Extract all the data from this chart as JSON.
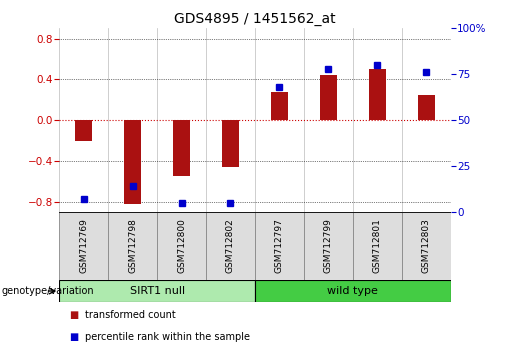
{
  "title": "GDS4895 / 1451562_at",
  "samples": [
    "GSM712769",
    "GSM712798",
    "GSM712800",
    "GSM712802",
    "GSM712797",
    "GSM712799",
    "GSM712801",
    "GSM712803"
  ],
  "bar_values": [
    -0.2,
    -0.82,
    -0.55,
    -0.46,
    0.28,
    0.44,
    0.5,
    0.25
  ],
  "percentile_values": [
    7,
    14,
    5,
    5,
    68,
    78,
    80,
    76
  ],
  "groups": [
    {
      "label": "SIRT1 null",
      "start": 0,
      "end": 4,
      "color": "#AEEAAE"
    },
    {
      "label": "wild type",
      "start": 4,
      "end": 8,
      "color": "#44CC44"
    }
  ],
  "ylim": [
    -0.9,
    0.9
  ],
  "yticks_left": [
    -0.8,
    -0.4,
    0.0,
    0.4,
    0.8
  ],
  "yticks_right": [
    0,
    25,
    50,
    75,
    100
  ],
  "bar_color": "#AA1111",
  "dot_color": "#0000CC",
  "zero_line_color": "#CC0000",
  "background_color": "#FFFFFF",
  "legend_red_label": "transformed count",
  "legend_blue_label": "percentile rank within the sample",
  "genotype_label": "genotype/variation",
  "title_fontsize": 10,
  "tick_fontsize": 7.5,
  "sample_fontsize": 6.5
}
